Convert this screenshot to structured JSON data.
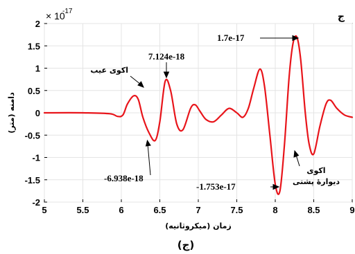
{
  "chart_data": {
    "type": "line",
    "panel_letter": "ج",
    "caption": "(ج)",
    "xlabel": "زمان (میکروثانیه)",
    "ylabel": "دامنه (متر)",
    "y_multiplier": "× 10",
    "y_exponent": "-17",
    "xlim": [
      5,
      9
    ],
    "ylim": [
      -2,
      2
    ],
    "x_ticks": [
      "5",
      "5.5",
      "6",
      "6.5",
      "7",
      "7.5",
      "8",
      "8.5",
      "9"
    ],
    "y_ticks": [
      "2",
      "1.5",
      "1",
      "0.5",
      "0",
      "-0.5",
      "-1",
      "-1.5",
      "-2"
    ],
    "grid": true,
    "line_color": "#e8141a",
    "series": [
      {
        "x": [
          5.0,
          5.5,
          5.85,
          5.95,
          6.02,
          6.08,
          6.16,
          6.22,
          6.28,
          6.36,
          6.44,
          6.5,
          6.57,
          6.64,
          6.72,
          6.8,
          6.9,
          6.96,
          7.02,
          7.1,
          7.2,
          7.3,
          7.4,
          7.5,
          7.58,
          7.65,
          7.72,
          7.8,
          7.86,
          7.93,
          8.0,
          8.06,
          8.12,
          8.18,
          8.23,
          8.28,
          8.33,
          8.39,
          8.44,
          8.5,
          8.58,
          8.66,
          8.72,
          8.8,
          8.9,
          9.0
        ],
        "y": [
          0.0,
          0.0,
          -0.02,
          -0.08,
          -0.05,
          0.2,
          0.38,
          0.3,
          -0.1,
          -0.45,
          -0.62,
          -0.2,
          0.71,
          0.5,
          -0.25,
          -0.38,
          0.1,
          0.18,
          0.04,
          -0.15,
          -0.2,
          -0.05,
          0.1,
          0.0,
          -0.1,
          0.1,
          0.55,
          0.98,
          0.6,
          -0.5,
          -1.6,
          -1.753,
          -0.7,
          0.8,
          1.55,
          1.7,
          1.2,
          0.0,
          -0.7,
          -0.92,
          -0.3,
          0.2,
          0.28,
          0.1,
          -0.05,
          -0.1
        ]
      }
    ],
    "annotations": [
      {
        "label": "1.7e-17"
      },
      {
        "label": "7.124e-18"
      },
      {
        "label": "-6.938e-18"
      },
      {
        "label": "-1.753e-17"
      },
      {
        "label": "اکوی عیب"
      },
      {
        "label": "اکوی"
      },
      {
        "label": "دیوارهٔ پشتی"
      }
    ]
  }
}
